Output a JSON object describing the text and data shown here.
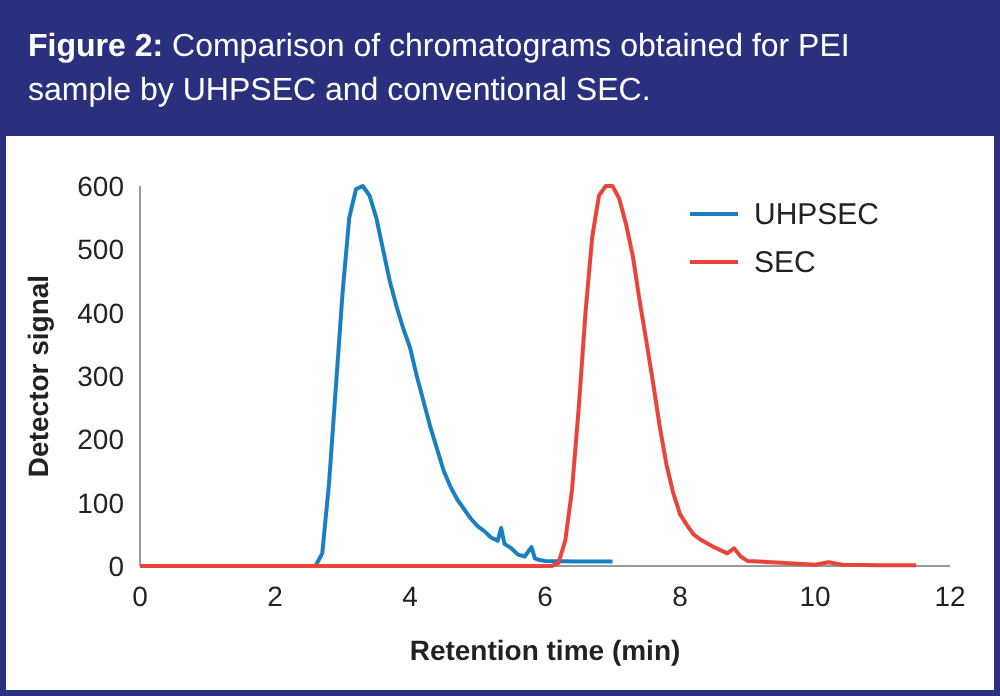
{
  "chart_data": {
    "type": "line",
    "title": "Figure 2:",
    "subtitle": "Comparison of chromatograms obtained for PEI sample by UHPSEC and conventional SEC.",
    "xlabel": "Retention time (min)",
    "ylabel": "Detector signal",
    "xlim": [
      0,
      12
    ],
    "ylim": [
      0,
      600
    ],
    "xticks": [
      0,
      2,
      4,
      6,
      8,
      10,
      12
    ],
    "yticks": [
      0,
      100,
      200,
      300,
      400,
      500,
      600
    ],
    "grid": false,
    "legend": "top right",
    "line_style": "solid",
    "series": [
      {
        "name": "UHPSEC",
        "color": "#1a7fc1",
        "x": [
          2.6,
          2.7,
          2.8,
          2.9,
          3.0,
          3.1,
          3.2,
          3.3,
          3.4,
          3.5,
          3.6,
          3.7,
          3.8,
          3.9,
          4.0,
          4.1,
          4.2,
          4.3,
          4.4,
          4.5,
          4.6,
          4.7,
          4.8,
          4.9,
          5.0,
          5.1,
          5.2,
          5.3,
          5.35,
          5.4,
          5.5,
          5.6,
          5.7,
          5.8,
          5.85,
          5.9,
          6.0,
          6.5,
          7.0
        ],
        "values": [
          0,
          20,
          130,
          280,
          430,
          550,
          595,
          600,
          585,
          550,
          500,
          450,
          410,
          375,
          345,
          300,
          260,
          220,
          185,
          150,
          125,
          105,
          90,
          75,
          63,
          55,
          45,
          40,
          60,
          35,
          28,
          18,
          15,
          30,
          12,
          10,
          8,
          7,
          7
        ]
      },
      {
        "name": "SEC",
        "color": "#e8443a",
        "x": [
          0,
          6.1,
          6.2,
          6.3,
          6.4,
          6.5,
          6.6,
          6.7,
          6.8,
          6.9,
          7.0,
          7.1,
          7.2,
          7.3,
          7.4,
          7.5,
          7.6,
          7.7,
          7.8,
          7.9,
          8.0,
          8.1,
          8.2,
          8.3,
          8.4,
          8.5,
          8.6,
          8.7,
          8.8,
          8.9,
          9.0,
          9.5,
          10.0,
          10.2,
          10.4,
          11.0,
          11.5
        ],
        "values": [
          0,
          0,
          5,
          40,
          120,
          250,
          400,
          520,
          585,
          600,
          600,
          580,
          540,
          490,
          420,
          356,
          290,
          220,
          160,
          115,
          82,
          65,
          50,
          42,
          36,
          30,
          25,
          20,
          28,
          15,
          8,
          5,
          2,
          6,
          2,
          1,
          1
        ]
      }
    ]
  }
}
